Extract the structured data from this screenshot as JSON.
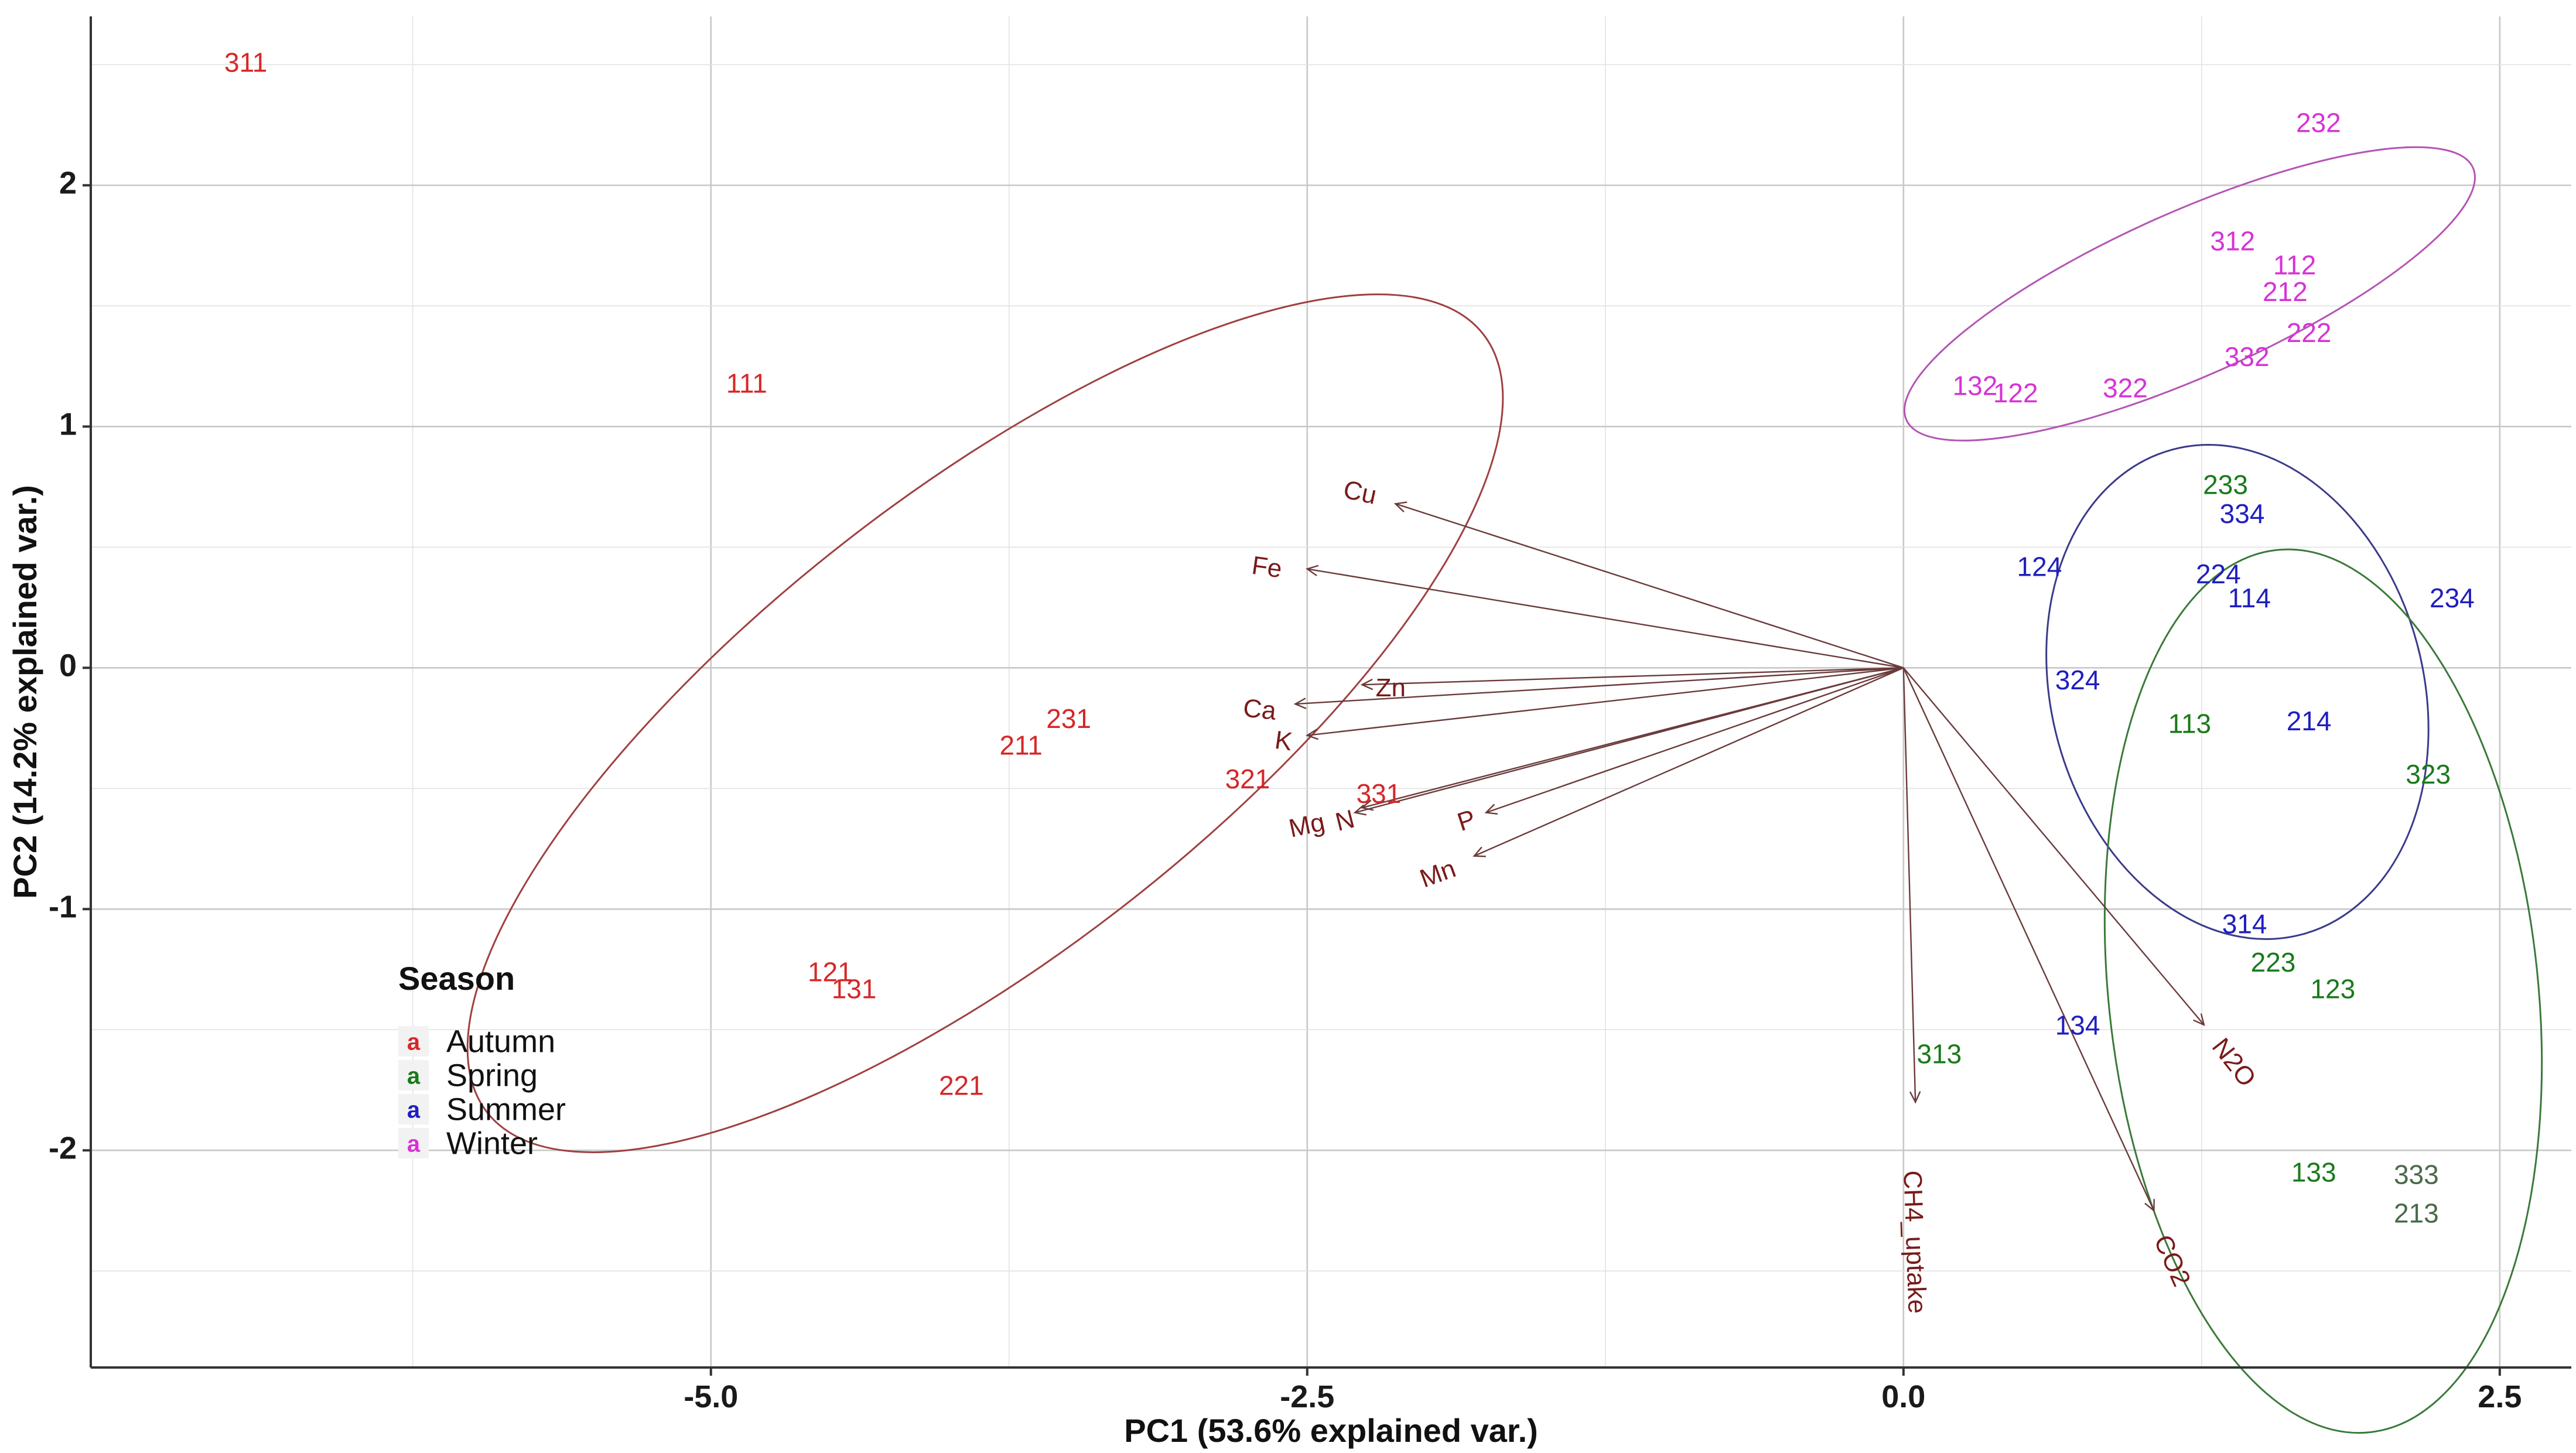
{
  "chart_data": {
    "type": "scatter",
    "title": "",
    "xlabel": "PC1 (53.6% explained var.)",
    "ylabel": "PC2 (14.2% explained var.)",
    "xlim": [
      -7.6,
      2.8
    ],
    "ylim": [
      -2.9,
      2.7
    ],
    "xticks": [
      -5.0,
      -2.5,
      0.0,
      2.5
    ],
    "xtick_labels": [
      "-5.0",
      "-2.5",
      "0.0",
      "2.5"
    ],
    "yticks": [
      -2,
      -1,
      0,
      1,
      2
    ],
    "ytick_labels": [
      "-2",
      "-1",
      "0",
      "1",
      "2"
    ],
    "grid": true,
    "legend": {
      "title": "Season",
      "position": "left-bottom",
      "items": [
        {
          "name": "Autumn",
          "color": "#d62728"
        },
        {
          "name": "Spring",
          "color": "#1a7a1a"
        },
        {
          "name": "Summer",
          "color": "#1f1fbf"
        },
        {
          "name": "Winter",
          "color": "#d633d6"
        }
      ]
    },
    "series": [
      {
        "name": "Autumn",
        "color": "#d62728",
        "points": [
          {
            "label": "311",
            "x": -6.95,
            "y": 2.5
          },
          {
            "label": "111",
            "x": -4.85,
            "y": 1.17
          },
          {
            "label": "231",
            "x": -3.5,
            "y": -0.22
          },
          {
            "label": "211",
            "x": -3.7,
            "y": -0.33
          },
          {
            "label": "321",
            "x": -2.75,
            "y": -0.47
          },
          {
            "label": "331",
            "x": -2.2,
            "y": -0.53
          },
          {
            "label": "121",
            "x": -4.5,
            "y": -1.27
          },
          {
            "label": "131",
            "x": -4.4,
            "y": -1.34
          },
          {
            "label": "221",
            "x": -3.95,
            "y": -1.74
          }
        ]
      },
      {
        "name": "Spring",
        "color": "#1a7a1a",
        "points": [
          {
            "label": "233",
            "x": 1.35,
            "y": 0.75
          },
          {
            "label": "113",
            "x": 1.2,
            "y": -0.24
          },
          {
            "label": "323",
            "x": 2.2,
            "y": -0.45
          },
          {
            "label": "223",
            "x": 1.55,
            "y": -1.23
          },
          {
            "label": "123",
            "x": 1.8,
            "y": -1.34
          },
          {
            "label": "313",
            "x": 0.15,
            "y": -1.61
          },
          {
            "label": "133",
            "x": 1.72,
            "y": -2.1
          },
          {
            "label": "333",
            "x": 2.15,
            "y": -2.11,
            "color": "#4a6a4a"
          },
          {
            "label": "213",
            "x": 2.15,
            "y": -2.27,
            "color": "#4a6a4a"
          }
        ]
      },
      {
        "name": "Summer",
        "color": "#1f1fbf",
        "points": [
          {
            "label": "334",
            "x": 1.42,
            "y": 0.63
          },
          {
            "label": "124",
            "x": 0.57,
            "y": 0.41
          },
          {
            "label": "224",
            "x": 1.32,
            "y": 0.38
          },
          {
            "label": "114",
            "x": 1.45,
            "y": 0.28
          },
          {
            "label": "234",
            "x": 2.3,
            "y": 0.28
          },
          {
            "label": "324",
            "x": 0.73,
            "y": -0.06
          },
          {
            "label": "214",
            "x": 1.7,
            "y": -0.23
          },
          {
            "label": "314",
            "x": 1.43,
            "y": -1.07
          },
          {
            "label": "134",
            "x": 0.73,
            "y": -1.49
          }
        ]
      },
      {
        "name": "Winter",
        "color": "#d633d6",
        "points": [
          {
            "label": "232",
            "x": 1.74,
            "y": 2.25
          },
          {
            "label": "312",
            "x": 1.38,
            "y": 1.76
          },
          {
            "label": "112",
            "x": 1.64,
            "y": 1.66
          },
          {
            "label": "212",
            "x": 1.6,
            "y": 1.55
          },
          {
            "label": "222",
            "x": 1.7,
            "y": 1.38
          },
          {
            "label": "332",
            "x": 1.44,
            "y": 1.28
          },
          {
            "label": "132",
            "x": 0.3,
            "y": 1.16
          },
          {
            "label": "122",
            "x": 0.47,
            "y": 1.13
          },
          {
            "label": "322",
            "x": 0.93,
            "y": 1.15
          }
        ]
      }
    ],
    "loadings": [
      {
        "name": "Cu",
        "x": -2.13,
        "y": 0.68,
        "label_x": -2.28,
        "label_y": 0.72,
        "angle": 12
      },
      {
        "name": "Fe",
        "x": -2.5,
        "y": 0.41,
        "label_x": -2.67,
        "label_y": 0.41,
        "angle": 8
      },
      {
        "name": "Zn",
        "x": -2.27,
        "y": -0.07,
        "label_x": -2.15,
        "label_y": -0.09,
        "angle": 0
      },
      {
        "name": "Ca",
        "x": -2.55,
        "y": -0.15,
        "label_x": -2.7,
        "label_y": -0.18,
        "angle": 6
      },
      {
        "name": "K",
        "x": -2.5,
        "y": -0.28,
        "label_x": -2.6,
        "label_y": -0.31,
        "angle": 8
      },
      {
        "name": "Mg",
        "x": -2.3,
        "y": -0.6,
        "label_x": -2.5,
        "label_y": -0.66,
        "angle": -12
      },
      {
        "name": "N",
        "x": -2.27,
        "y": -0.58,
        "label_x": -2.34,
        "label_y": -0.64,
        "angle": -14
      },
      {
        "name": "P",
        "x": -1.75,
        "y": -0.6,
        "label_x": -1.83,
        "label_y": -0.64,
        "angle": -18
      },
      {
        "name": "Mn",
        "x": -1.8,
        "y": -0.78,
        "label_x": -1.95,
        "label_y": -0.86,
        "angle": -20
      },
      {
        "name": "CH4_uptake",
        "x": 0.05,
        "y": -1.8,
        "label_x": 0.04,
        "label_y": -2.38,
        "angle": 88
      },
      {
        "name": "N2O",
        "x": 1.26,
        "y": -1.48,
        "label_x": 1.38,
        "label_y": -1.64,
        "angle": 52
      },
      {
        "name": "CO2",
        "x": 1.05,
        "y": -2.25,
        "label_x": 1.12,
        "label_y": -2.46,
        "angle": 66
      }
    ],
    "ellipses": [
      {
        "group": "Autumn",
        "color": "#a04040",
        "cx": -3.85,
        "cy": -0.23,
        "rx": 2.65,
        "ry": 0.95,
        "rotation": -38
      },
      {
        "group": "Winter",
        "color": "#b355b3",
        "cx": 1.2,
        "cy": 1.55,
        "rx": 1.3,
        "ry": 0.34,
        "rotation": -24
      },
      {
        "group": "Summer",
        "color": "#3a3a8a",
        "cx": 1.4,
        "cy": -0.1,
        "rx": 0.78,
        "ry": 1.04,
        "rotation": -15
      },
      {
        "group": "Spring",
        "color": "#3a7a3a",
        "cx": 1.76,
        "cy": -1.34,
        "rx": 1.86,
        "ry": 0.89,
        "rotation": 84
      }
    ]
  }
}
